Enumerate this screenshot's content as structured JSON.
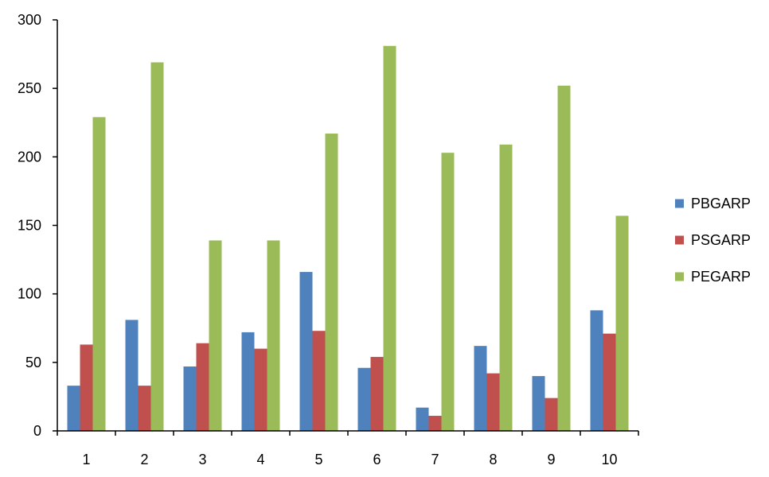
{
  "chart_data": {
    "type": "bar",
    "title": "",
    "xlabel": "",
    "ylabel": "",
    "categories": [
      "1",
      "2",
      "3",
      "4",
      "5",
      "6",
      "7",
      "8",
      "9",
      "10"
    ],
    "series": [
      {
        "name": "PBGARP",
        "color": "#4F81BD",
        "values": [
          33,
          81,
          47,
          72,
          116,
          46,
          17,
          62,
          40,
          88
        ]
      },
      {
        "name": "PSGARP",
        "color": "#C0504D",
        "values": [
          63,
          33,
          64,
          60,
          73,
          54,
          11,
          42,
          24,
          71
        ]
      },
      {
        "name": "PEGARP",
        "color": "#9BBB59",
        "values": [
          229,
          269,
          139,
          139,
          217,
          281,
          203,
          209,
          252,
          157
        ]
      }
    ],
    "ylim": [
      0,
      300
    ],
    "yticks": [
      0,
      50,
      100,
      150,
      200,
      250,
      300
    ],
    "grid": false,
    "legend_position": "right"
  }
}
